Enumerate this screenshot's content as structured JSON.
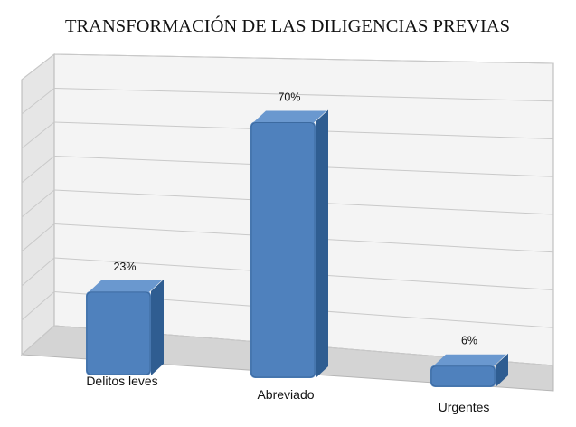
{
  "chart_data": {
    "type": "bar",
    "title": "TRANSFORMACIÓN DE LAS DILIGENCIAS PREVIAS",
    "categories": [
      "Delitos leves",
      "Abreviado",
      "Urgentes"
    ],
    "values": [
      23,
      70,
      6
    ],
    "data_labels": [
      "23%",
      "70%",
      "6%"
    ],
    "unit": "%",
    "ylim": [
      0,
      80
    ],
    "grid": true,
    "legend": "none",
    "xlabel": "",
    "ylabel": "",
    "colors": {
      "bar": "#4f81bd",
      "bar_side": "#2f5d91",
      "bar_top": "#6a98cf",
      "grid": "#c9c9c9",
      "wall": "#f2f2f2"
    }
  }
}
